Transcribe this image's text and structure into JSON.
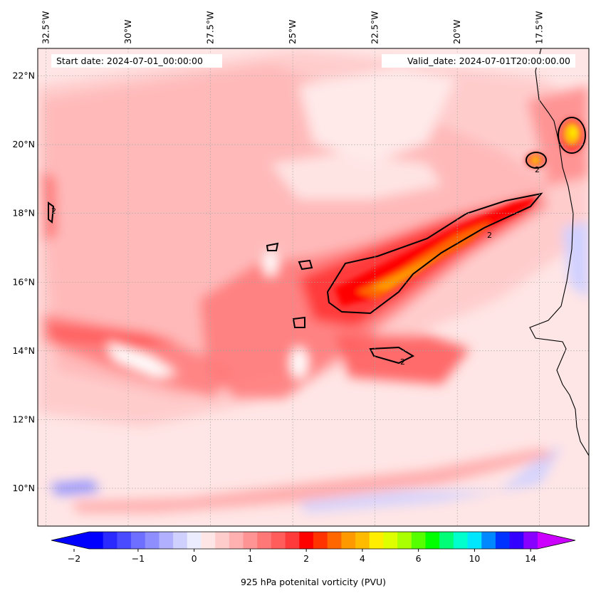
{
  "map": {
    "start_date_label": "Start date: 2024-07-01_00:00:00",
    "valid_date_label": "Valid_date: 2024-07-01T20:00:00.00",
    "lon_labels": [
      "32.5°W",
      "30°W",
      "27.5°W",
      "25°W",
      "22.5°W",
      "20°W",
      "17.5°W"
    ],
    "lon_values": [
      -32.5,
      -30,
      -27.5,
      -25,
      -22.5,
      -20,
      -17.5
    ],
    "lat_labels": [
      "22°N",
      "20°N",
      "18°N",
      "16°N",
      "14°N",
      "12°N",
      "10°N"
    ],
    "lat_values": [
      22,
      20,
      18,
      16,
      14,
      12,
      10
    ],
    "lon_range": [
      -32.75,
      -16.0
    ],
    "lat_range": [
      8.9,
      22.8
    ],
    "contour_label": "2",
    "gridlines": true
  },
  "colorbar": {
    "label": "925 hPa potenital vorticity (PVU)",
    "tick_labels": [
      "−2",
      "−1",
      "0",
      "1",
      "2",
      "4",
      "6",
      "10",
      "14"
    ],
    "colors": [
      "#0000ff",
      "#2a2aff",
      "#4a4aff",
      "#6e6eff",
      "#8e8eff",
      "#b0b0ff",
      "#d0d0ff",
      "#ececff",
      "#ffe6e6",
      "#ffcccc",
      "#ffb0b0",
      "#ff9494",
      "#ff7878",
      "#ff5c5c",
      "#ff3a3a",
      "#ff0000",
      "#ff3300",
      "#ff6600",
      "#ff9900",
      "#ffbb00",
      "#ffee00",
      "#ddff00",
      "#aaff00",
      "#55ff00",
      "#00ff00",
      "#00ff77",
      "#00ffcc",
      "#00e6ff",
      "#0088ff",
      "#0033ff",
      "#3300ff",
      "#8800ff"
    ],
    "extend_low_color": "#0000ff",
    "extend_high_color": "#cc00ff"
  }
}
